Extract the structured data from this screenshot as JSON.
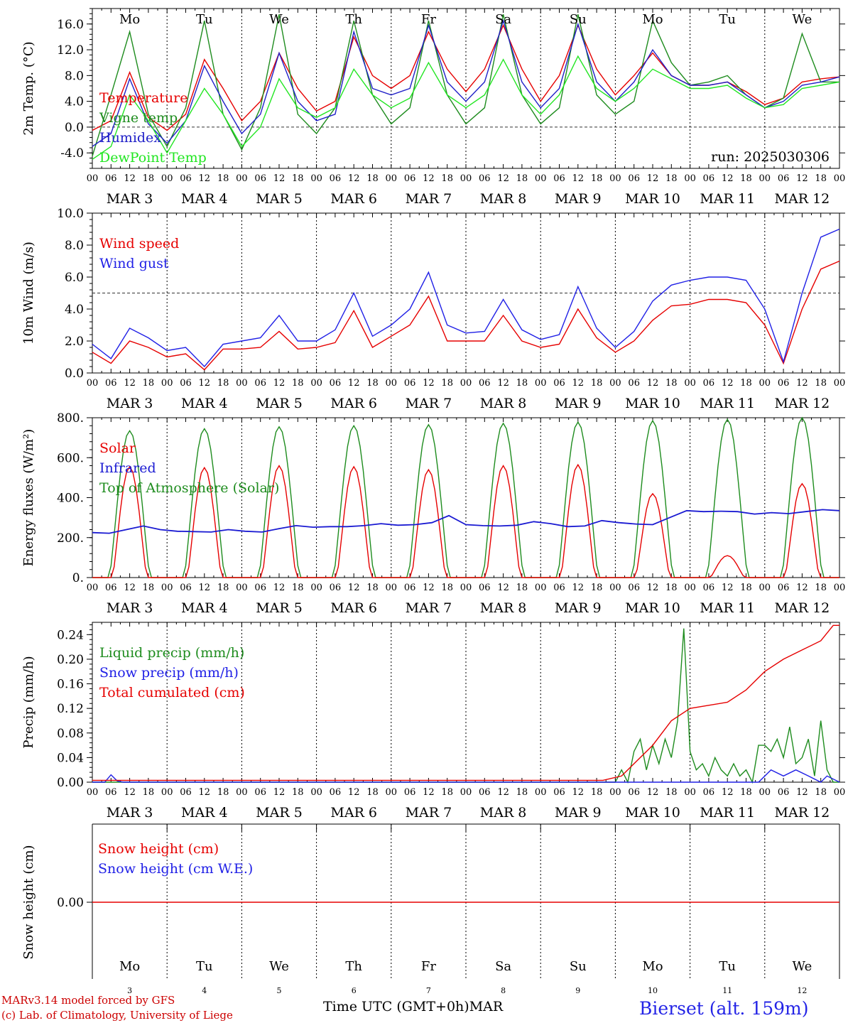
{
  "chart_data": [
    {
      "type": "line",
      "ylabel": "2m Temp. (°C)",
      "ylim": [
        -6.4,
        18.4
      ],
      "yticks": [
        "-4.0",
        "0.0",
        "4.0",
        "8.0",
        "12.0",
        "16.0"
      ],
      "ytick_values": [
        -4,
        0,
        4,
        8,
        12,
        16
      ],
      "reference_line": 0,
      "annotation": "run: 2025030306",
      "weekdays": [
        "Mo",
        "Tu",
        "We",
        "Th",
        "Fr",
        "Sa",
        "Su",
        "Mo",
        "Tu",
        "We"
      ],
      "weekday_colors": [
        "#000000",
        "#000000",
        "#000000",
        "#000000",
        "#000000",
        "#e60000",
        "#e60000",
        "#000000",
        "#000000",
        "#000000"
      ],
      "x_hours": [
        0,
        6,
        12,
        18,
        24,
        30,
        36,
        42,
        48,
        54,
        60,
        66,
        72,
        78,
        84,
        90,
        96,
        102,
        108,
        114,
        120,
        126,
        132,
        138,
        144,
        150,
        156,
        162,
        168,
        174,
        180,
        186,
        192,
        198,
        204,
        210,
        216,
        222,
        228,
        234,
        240
      ],
      "series": [
        {
          "name": "Temperature",
          "color": "#e60000",
          "values": [
            -0.5,
            1.0,
            8.5,
            1.5,
            -0.5,
            2.0,
            10.5,
            6.0,
            1.0,
            4.0,
            11.5,
            6.0,
            2.5,
            4.0,
            14.0,
            8.0,
            6.0,
            8.0,
            14.8,
            9.0,
            5.5,
            9.0,
            15.8,
            9.0,
            4.0,
            8.0,
            15.8,
            9.0,
            5.0,
            8.0,
            11.5,
            8.0,
            6.5,
            6.5,
            7.0,
            5.5,
            3.5,
            4.5,
            7.0,
            7.5,
            7.8
          ]
        },
        {
          "name": "Vigne temp",
          "color": "#1e8c1e",
          "values": [
            -4.5,
            5.0,
            14.8,
            2.0,
            -3.0,
            3.0,
            16.5,
            2.0,
            -3.5,
            3.0,
            17.5,
            2.0,
            -1.0,
            3.0,
            16.5,
            5.0,
            0.5,
            3.0,
            16.5,
            5.0,
            0.5,
            3.0,
            17.5,
            5.0,
            0.5,
            3.0,
            17.5,
            5.0,
            2.0,
            4.0,
            16.5,
            10.0,
            6.5,
            7.0,
            8.0,
            5.0,
            3.0,
            4.5,
            14.5,
            7.0,
            7.0
          ]
        },
        {
          "name": "Humidex",
          "color": "#2020c8",
          "values": [
            -3.0,
            -1.0,
            7.5,
            0.5,
            -2.5,
            1.0,
            9.5,
            4.0,
            -1.0,
            2.0,
            11.5,
            4.0,
            1.0,
            2.0,
            14.8,
            6.0,
            5.0,
            6.0,
            15.8,
            7.0,
            4.0,
            7.0,
            16.5,
            7.0,
            3.0,
            6.0,
            16.0,
            7.0,
            4.0,
            7.0,
            12.0,
            8.0,
            6.5,
            6.5,
            7.0,
            5.0,
            3.0,
            4.0,
            6.5,
            7.0,
            7.8
          ]
        },
        {
          "name": "DewPoint Temp",
          "color": "#22e622",
          "values": [
            -5.0,
            -3.0,
            5.0,
            1.0,
            -4.0,
            1.0,
            6.0,
            2.0,
            -3.0,
            0.0,
            7.5,
            3.0,
            1.5,
            3.0,
            9.0,
            5.0,
            3.0,
            4.5,
            10.0,
            5.0,
            3.0,
            5.0,
            10.5,
            5.0,
            2.0,
            5.0,
            11.0,
            6.0,
            4.0,
            6.0,
            9.0,
            7.5,
            6.0,
            6.0,
            6.5,
            4.5,
            3.0,
            3.5,
            6.0,
            6.5,
            7.0
          ]
        }
      ]
    },
    {
      "type": "line",
      "ylabel": "10m Wind (m/s)",
      "ylim": [
        0,
        10
      ],
      "yticks": [
        "0.0",
        "2.0",
        "4.0",
        "6.0",
        "8.0",
        "10.0"
      ],
      "ytick_values": [
        0,
        2,
        4,
        6,
        8,
        10
      ],
      "reference_line": 5,
      "x_hours": [
        0,
        6,
        12,
        18,
        24,
        30,
        36,
        42,
        48,
        54,
        60,
        66,
        72,
        78,
        84,
        90,
        96,
        102,
        108,
        114,
        120,
        126,
        132,
        138,
        144,
        150,
        156,
        162,
        168,
        174,
        180,
        186,
        192,
        198,
        204,
        210,
        216,
        222,
        228,
        234,
        240
      ],
      "series": [
        {
          "name": "Wind speed",
          "color": "#e60000",
          "values": [
            1.3,
            0.6,
            2.0,
            1.6,
            1.0,
            1.2,
            0.2,
            1.5,
            1.5,
            1.6,
            2.6,
            1.5,
            1.6,
            1.9,
            3.9,
            1.6,
            2.3,
            3.0,
            4.8,
            2.0,
            2.0,
            2.0,
            3.6,
            2.0,
            1.6,
            1.8,
            4.0,
            2.2,
            1.3,
            2.0,
            3.3,
            4.2,
            4.3,
            4.6,
            4.6,
            4.4,
            3.0,
            0.6,
            4.0,
            6.5,
            7.0
          ]
        },
        {
          "name": "Wind gust",
          "color": "#2020e6",
          "values": [
            1.8,
            0.9,
            2.8,
            2.2,
            1.4,
            1.6,
            0.4,
            1.8,
            2.0,
            2.2,
            3.6,
            2.0,
            2.0,
            2.7,
            5.0,
            2.3,
            3.0,
            4.0,
            6.3,
            3.0,
            2.5,
            2.6,
            4.6,
            2.7,
            2.1,
            2.4,
            5.4,
            2.8,
            1.6,
            2.6,
            4.5,
            5.5,
            5.8,
            6.0,
            6.0,
            5.8,
            4.0,
            0.7,
            5.0,
            8.5,
            9.0
          ]
        }
      ]
    },
    {
      "type": "line",
      "ylabel": "Energy fluxes (W/m²)",
      "ylim": [
        0,
        800
      ],
      "yticks": [
        "0.",
        "200.",
        "400.",
        "600.",
        "800."
      ],
      "ytick_values": [
        0,
        200,
        400,
        600,
        800
      ],
      "day_peaks": {
        "Solar": [
          555,
          550,
          560,
          555,
          540,
          560,
          565,
          420,
          110,
          470
        ],
        "Top of Atmosphere (Solar)": [
          735,
          745,
          755,
          760,
          765,
          772,
          778,
          785,
          792,
          800
        ]
      },
      "infrared_hourly": [
        225,
        222,
        240,
        258,
        240,
        232,
        230,
        228,
        240,
        232,
        228,
        245,
        260,
        252,
        255,
        255,
        260,
        270,
        262,
        265,
        275,
        310,
        265,
        260,
        258,
        262,
        280,
        270,
        255,
        258,
        285,
        275,
        268,
        265,
        300,
        335,
        330,
        332,
        330,
        318,
        325,
        320,
        330,
        340,
        335
      ],
      "series": [
        {
          "name": "Solar",
          "color": "#e60000"
        },
        {
          "name": "Infrared",
          "color": "#1a1ad2"
        },
        {
          "name": "Top of Atmosphere (Solar)",
          "color": "#1e8c1e"
        }
      ]
    },
    {
      "type": "line",
      "ylabel": "Precip (mm/h)",
      "ylim": [
        0,
        0.26
      ],
      "yticks": [
        "0.00",
        "0.04",
        "0.08",
        "0.12",
        "0.16",
        "0.20",
        "0.24"
      ],
      "ytick_values": [
        0,
        0.04,
        0.08,
        0.12,
        0.16,
        0.2,
        0.24
      ],
      "series": [
        {
          "name": "Liquid precip (mm/h)",
          "color": "#1e8c1e",
          "points": [
            [
              0,
              0
            ],
            [
              168,
              0
            ],
            [
              170,
              0.02
            ],
            [
              172,
              0.0
            ],
            [
              174,
              0.05
            ],
            [
              176,
              0.07
            ],
            [
              178,
              0.02
            ],
            [
              180,
              0.06
            ],
            [
              182,
              0.03
            ],
            [
              184,
              0.07
            ],
            [
              186,
              0.04
            ],
            [
              188,
              0.1
            ],
            [
              190,
              0.25
            ],
            [
              192,
              0.05
            ],
            [
              194,
              0.02
            ],
            [
              196,
              0.03
            ],
            [
              198,
              0.01
            ],
            [
              200,
              0.04
            ],
            [
              202,
              0.02
            ],
            [
              204,
              0.01
            ],
            [
              206,
              0.03
            ],
            [
              208,
              0.01
            ],
            [
              210,
              0.02
            ],
            [
              212,
              0.0
            ],
            [
              214,
              0.06
            ],
            [
              216,
              0.06
            ],
            [
              218,
              0.05
            ],
            [
              220,
              0.07
            ],
            [
              222,
              0.04
            ],
            [
              224,
              0.09
            ],
            [
              226,
              0.03
            ],
            [
              228,
              0.04
            ],
            [
              230,
              0.07
            ],
            [
              232,
              0.01
            ],
            [
              234,
              0.1
            ],
            [
              236,
              0.02
            ],
            [
              238,
              0.0
            ],
            [
              240,
              0.0
            ]
          ]
        },
        {
          "name": "Snow precip (mm/h)",
          "color": "#2020e6",
          "points": [
            [
              0,
              0
            ],
            [
              4,
              0
            ],
            [
              6,
              0.012
            ],
            [
              8,
              0.002
            ],
            [
              10,
              0
            ],
            [
              214,
              0
            ],
            [
              218,
              0.02
            ],
            [
              222,
              0.01
            ],
            [
              226,
              0.02
            ],
            [
              230,
              0.01
            ],
            [
              234,
              0.0
            ],
            [
              236,
              0.01
            ],
            [
              240,
              0
            ]
          ]
        },
        {
          "name": "Total cumulated (cm)",
          "color": "#e60000",
          "points": [
            [
              0,
              0.003
            ],
            [
              160,
              0.003
            ],
            [
              164,
              0.003
            ],
            [
              170,
              0.01
            ],
            [
              174,
              0.03
            ],
            [
              180,
              0.06
            ],
            [
              186,
              0.1
            ],
            [
              192,
              0.12
            ],
            [
              198,
              0.125
            ],
            [
              204,
              0.13
            ],
            [
              210,
              0.15
            ],
            [
              216,
              0.18
            ],
            [
              222,
              0.2
            ],
            [
              228,
              0.215
            ],
            [
              234,
              0.23
            ],
            [
              238,
              0.255
            ],
            [
              240,
              0.255
            ]
          ]
        }
      ]
    },
    {
      "type": "line",
      "ylabel": "Snow height (cm)",
      "yticks": [
        "0.00"
      ],
      "ytick_values": [
        0
      ],
      "series": [
        {
          "name": "Snow height (cm)",
          "color": "#e60000",
          "values": [
            0,
            0
          ]
        },
        {
          "name": "Snow height (cm W.E.)",
          "color": "#2020e6",
          "values": []
        }
      ]
    }
  ],
  "x_axis": {
    "hour_ticks": [
      "00",
      "06",
      "12",
      "18"
    ],
    "final_tick": "00",
    "dates": [
      "MAR  3",
      "MAR  4",
      "MAR  5",
      "MAR  6",
      "MAR  7",
      "MAR  8",
      "MAR  9",
      "MAR 10",
      "MAR 11",
      "MAR 12"
    ],
    "day_numbers": [
      "3",
      "4",
      "5",
      "6",
      "7",
      "8",
      "9",
      "10",
      "11",
      "12"
    ]
  },
  "footer": {
    "model_line": "MARv3.14 model forced by GFS",
    "credit_line": "(c) Lab. of Climatology, University of Liege",
    "xlabel": "Time UTC (GMT+0h)MAR",
    "station": "Bierset (alt. 159m)"
  },
  "colors": {
    "red": "#e60000",
    "green": "#1e8c1e",
    "blue": "#2020e6",
    "light_green": "#22e622"
  }
}
